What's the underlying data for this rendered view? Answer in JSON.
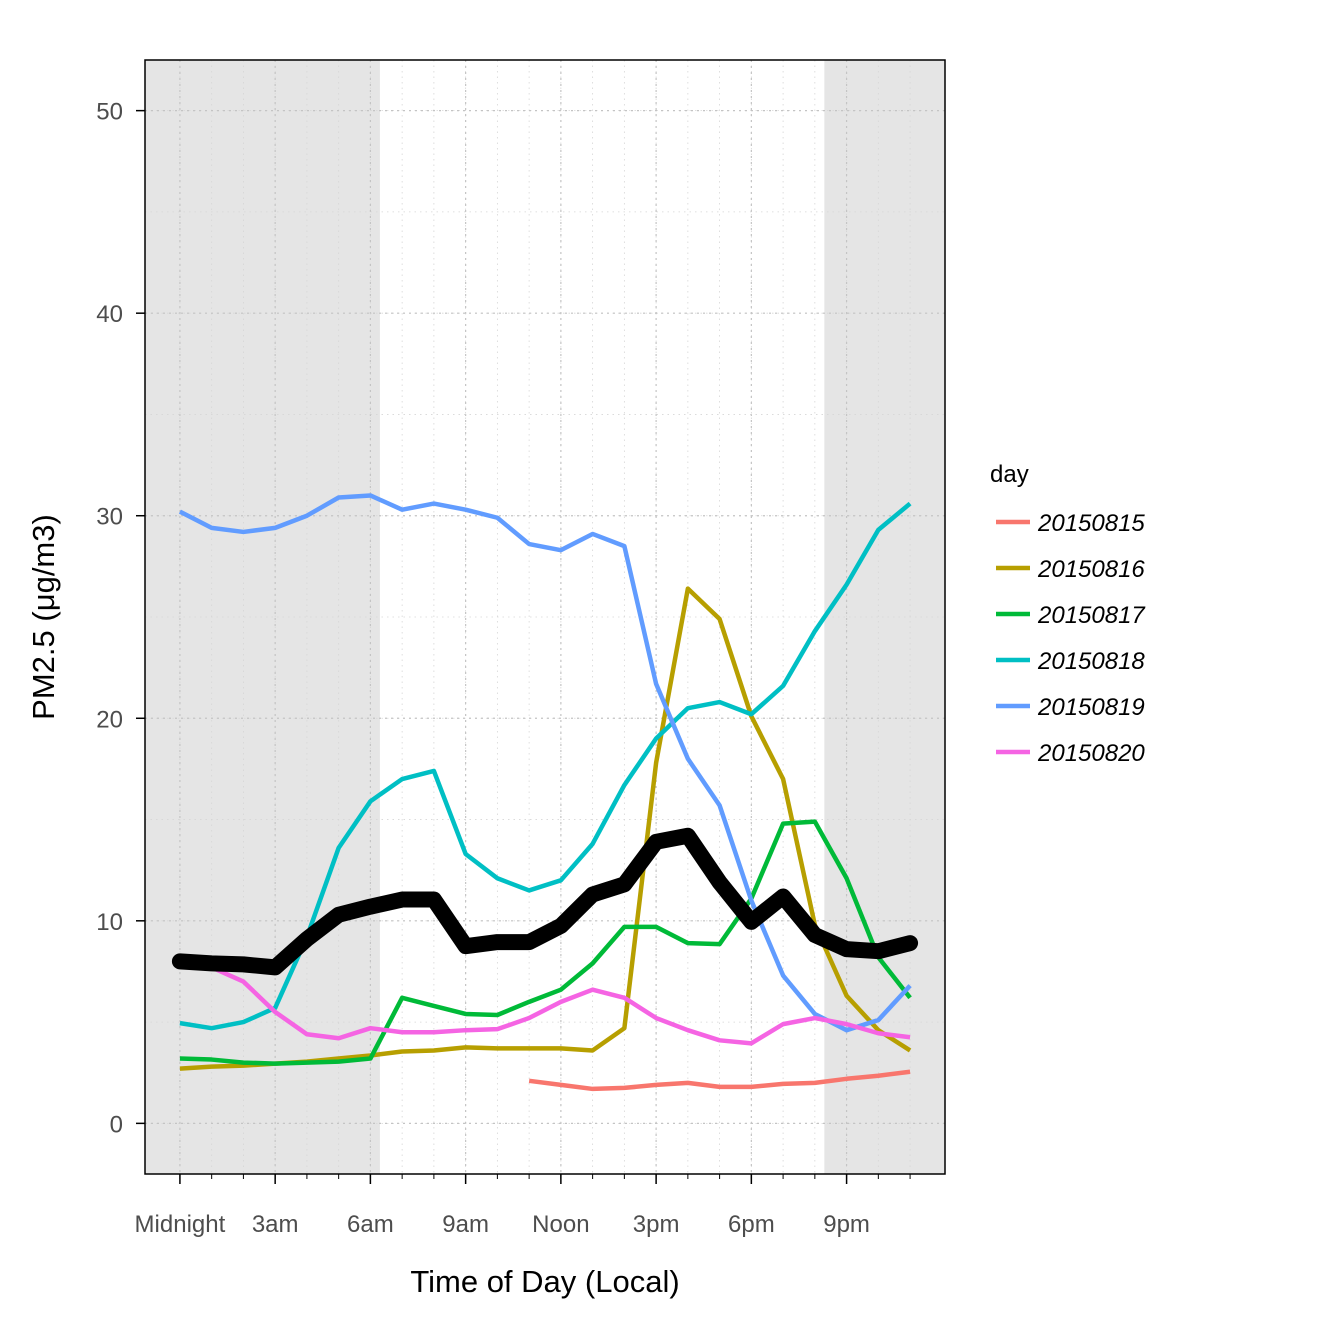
{
  "chart_data": {
    "type": "line",
    "title": "",
    "xlabel": "Time of Day (Local)",
    "ylabel": "PM2.5 (μg/m3)",
    "xlim": [
      -1.1,
      24.1
    ],
    "ylim": [
      -2.5,
      52.5
    ],
    "x_ticks": [
      {
        "value": 0,
        "label": "Midnight"
      },
      {
        "value": 3,
        "label": "3am"
      },
      {
        "value": 6,
        "label": "6am"
      },
      {
        "value": 9,
        "label": "9am"
      },
      {
        "value": 12,
        "label": "Noon"
      },
      {
        "value": 15,
        "label": "3pm"
      },
      {
        "value": 18,
        "label": "6pm"
      },
      {
        "value": 21,
        "label": "9pm"
      }
    ],
    "y_ticks": [
      0,
      10,
      20,
      30,
      40,
      50
    ],
    "grid": "dotted",
    "night_shading": [
      {
        "from": -1.1,
        "to": 6.3,
        "color": "#e5e5e5"
      },
      {
        "from": 20.3,
        "to": 24.1,
        "color": "#e5e5e5"
      }
    ],
    "legend": {
      "title": "day",
      "position": "right"
    },
    "series": [
      {
        "name": "20150815",
        "color": "#F8766D",
        "x": [
          11,
          12,
          13,
          14,
          15,
          16,
          17,
          18,
          19,
          20,
          21,
          22,
          23
        ],
        "values": [
          2.1,
          1.9,
          1.7,
          1.75,
          1.9,
          2.0,
          1.8,
          1.8,
          1.95,
          2.0,
          2.2,
          2.35,
          2.55
        ]
      },
      {
        "name": "20150816",
        "color": "#B79F00",
        "x": [
          0,
          1,
          2,
          3,
          4,
          5,
          6,
          7,
          8,
          9,
          10,
          11,
          12,
          13,
          14,
          15,
          16,
          17,
          18,
          19,
          20,
          21,
          22,
          23
        ],
        "values": [
          2.7,
          2.8,
          2.85,
          2.95,
          3.05,
          3.2,
          3.35,
          3.55,
          3.6,
          3.75,
          3.7,
          3.7,
          3.7,
          3.6,
          4.7,
          17.8,
          26.4,
          24.9,
          20.1,
          17.0,
          9.8,
          6.3,
          4.6,
          3.6
        ]
      },
      {
        "name": "20150817",
        "color": "#00BA38",
        "x": [
          0,
          1,
          2,
          3,
          4,
          5,
          6,
          7,
          8,
          9,
          10,
          11,
          12,
          13,
          14,
          15,
          16,
          17,
          18,
          19,
          20,
          21,
          22,
          23
        ],
        "values": [
          3.2,
          3.15,
          3.0,
          2.95,
          3.0,
          3.05,
          3.2,
          6.2,
          5.8,
          5.4,
          5.35,
          6.0,
          6.6,
          7.9,
          9.7,
          9.7,
          8.9,
          8.85,
          11.1,
          14.8,
          14.9,
          12.1,
          8.2,
          6.2
        ]
      },
      {
        "name": "20150818",
        "color": "#00BFC4",
        "x": [
          0,
          1,
          2,
          3,
          4,
          5,
          6,
          7,
          8,
          9,
          10,
          11,
          12,
          13,
          14,
          15,
          16,
          17,
          18,
          19,
          20,
          21,
          22,
          23
        ],
        "values": [
          4.95,
          4.7,
          5.0,
          5.7,
          9.2,
          13.6,
          15.9,
          17.0,
          17.4,
          13.3,
          12.1,
          11.5,
          12.0,
          13.8,
          16.7,
          19.0,
          20.5,
          20.8,
          20.2,
          21.6,
          24.3,
          26.6,
          29.3,
          30.6
        ]
      },
      {
        "name": "20150819",
        "color": "#619CFF",
        "x": [
          0,
          1,
          2,
          3,
          4,
          5,
          6,
          7,
          8,
          9,
          10,
          11,
          12,
          13,
          14,
          15,
          16,
          17,
          18,
          19,
          20,
          21,
          22,
          23
        ],
        "values": [
          30.2,
          29.4,
          29.2,
          29.4,
          30.0,
          30.9,
          31.0,
          30.3,
          30.6,
          30.3,
          29.9,
          28.6,
          28.3,
          29.1,
          28.5,
          21.7,
          18.0,
          15.7,
          11.0,
          7.3,
          5.4,
          4.6,
          5.1,
          6.8
        ]
      },
      {
        "name": "20150820",
        "color": "#F564E3",
        "x": [
          0,
          1,
          2,
          3,
          4,
          5,
          6,
          7,
          8,
          9,
          10,
          11,
          12,
          13,
          14,
          15,
          16,
          17,
          18,
          19,
          20,
          21,
          22,
          23
        ],
        "values": [
          8.0,
          7.7,
          7.0,
          5.5,
          4.4,
          4.2,
          4.7,
          4.5,
          4.5,
          4.6,
          4.65,
          5.2,
          6.0,
          6.6,
          6.2,
          5.2,
          4.6,
          4.1,
          3.95,
          4.9,
          5.2,
          4.9,
          4.45,
          4.25
        ]
      },
      {
        "name": "",
        "color": "#000000",
        "x": [
          0,
          1,
          2,
          3,
          4,
          5,
          6,
          7,
          8,
          9,
          10,
          11,
          12,
          13,
          14,
          15,
          16,
          17,
          18,
          19,
          20,
          21,
          22,
          23
        ],
        "values": [
          8.0,
          7.9,
          7.85,
          7.7,
          9.1,
          10.3,
          10.7,
          11.05,
          11.05,
          8.75,
          8.95,
          8.95,
          9.75,
          11.3,
          11.8,
          13.9,
          14.2,
          11.9,
          9.95,
          11.2,
          9.3,
          8.6,
          8.5,
          8.9
        ]
      }
    ]
  }
}
